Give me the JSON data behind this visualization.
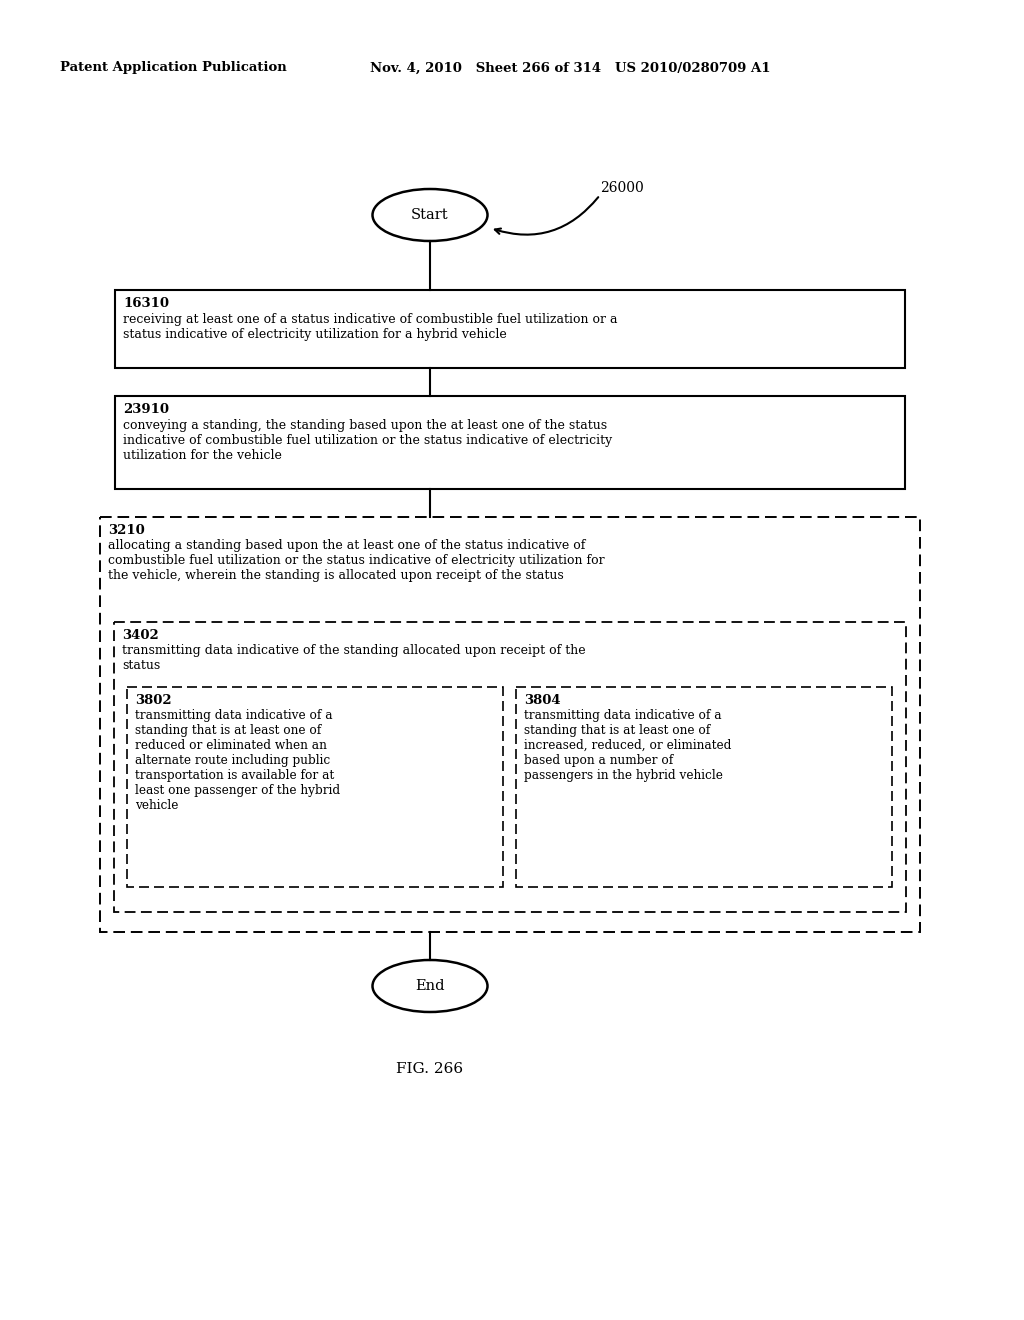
{
  "header_left": "Patent Application Publication",
  "header_right": "Nov. 4, 2010   Sheet 266 of 314   US 2010/0280709 A1",
  "fig_label": "FIG. 266",
  "start_label": "Start",
  "end_label": "End",
  "flow_label": "26000",
  "box1_id": "16310",
  "box1_text": "receiving at least one of a status indicative of combustible fuel utilization or a\nstatus indicative of electricity utilization for a hybrid vehicle",
  "box2_id": "23910",
  "box2_text": "conveying a standing, the standing based upon the at least one of the status\nindicative of combustible fuel utilization or the status indicative of electricity\nutilization for the vehicle",
  "dbox1_id": "3210",
  "dbox1_text": "allocating a standing based upon the at least one of the status indicative of\ncombustible fuel utilization or the status indicative of electricity utilization for\nthe vehicle, wherein the standing is allocated upon receipt of the status",
  "dbox2_id": "3402",
  "dbox2_text": "transmitting data indicative of the standing allocated upon receipt of the\nstatus",
  "dbox3_id": "3802",
  "dbox3_text": "transmitting data indicative of a\nstanding that is at least one of\nreduced or eliminated when an\nalternate route including public\ntransportation is available for at\nleast one passenger of the hybrid\nvehicle",
  "dbox4_id": "3804",
  "dbox4_text": "transmitting data indicative of a\nstanding that is at least one of\nincreased, reduced, or eliminated\nbased upon a number of\npassengers in the hybrid vehicle",
  "background_color": "#ffffff",
  "text_color": "#000000",
  "line_color": "#000000",
  "box_edge_color": "#000000",
  "dash_color": "#000000"
}
